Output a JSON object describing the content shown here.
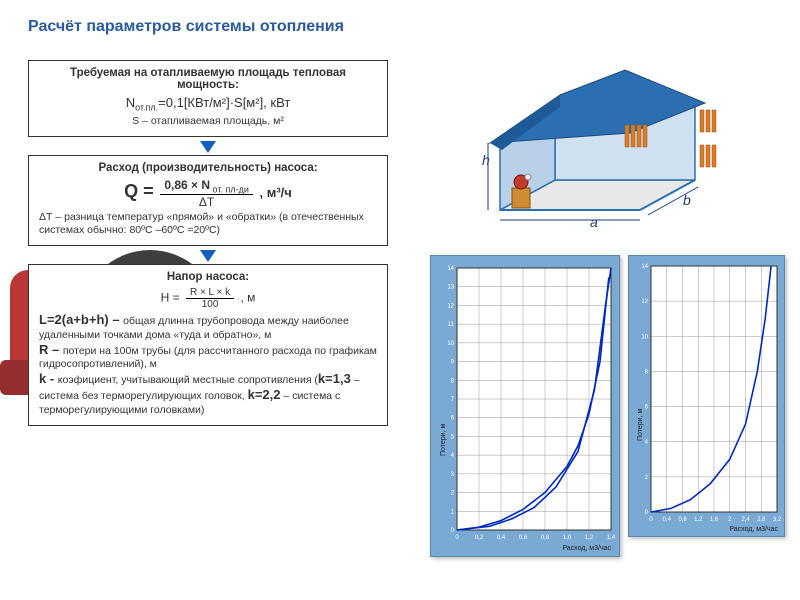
{
  "title": "Расчёт параметров системы отопления",
  "box1": {
    "heading": "Требуемая на отапливаемую площадь тепловая мощность:",
    "formula_pre": "N",
    "formula_sub": "от.пл.",
    "formula_rest": "=0,1[КВт/м²]·S[м²],  кВт",
    "note": "S – отапливаемая площадь, м²"
  },
  "box2": {
    "heading": "Расход (производительность) насоса:",
    "q": "Q =",
    "num": "0,86 × N",
    "num_sub": " от. пл-ди",
    "den": "ΔТ",
    "unit": ",  м³/ч",
    "note": "ΔТ – разница температур «прямой» и «обратки» (в отечественных системах обычно: 80ºС –60ºС =20ºС)"
  },
  "box3": {
    "heading": "Напор насоса:",
    "h": "H =",
    "num": "R × L × k",
    "den": "100",
    "unit": ", м",
    "l_line": "L=2(a+b+h) – ",
    "l_rest": "общая длинна трубопровода между наиболее удаленными точками дома «туда и обратно»,  м",
    "r_line": "R – ",
    "r_rest": "потери на 100м трубы (для рассчитанного расхода по графикам гидросопротивлений), м",
    "k_line": "k - ",
    "k_rest": "коэфициент, учитывающий местные сопротивления (",
    "k13": "k=1,3",
    "k13_rest": " –система без терморегулирующих головок, ",
    "k22": "k=2,2",
    "k22_rest": " – система с терморегулирующими головками)"
  },
  "house": {
    "labels": {
      "a": "a",
      "b": "b",
      "h": "h"
    },
    "colors": {
      "roof": "#2c6fb0",
      "wall_back": "#cfe0f0",
      "wall_side": "#b8d0e8",
      "floor": "#e8e8e8",
      "radiator": "#d67d2a",
      "pump": "#c43a2a",
      "base": "#d08a30"
    }
  },
  "chartA": {
    "ylabel": "Потери, м",
    "xlabel": "Расход, м3/час",
    "xlim": [
      0,
      1.4
    ],
    "ylim": [
      0,
      14
    ],
    "xticks": [
      "0",
      "0,2",
      "0,4",
      "0,6",
      "0,8",
      "1,0",
      "1,2",
      "1,4"
    ],
    "yticks": [
      "0",
      "1",
      "2",
      "3",
      "4",
      "5",
      "6",
      "7",
      "8",
      "9",
      "10",
      "11",
      "12",
      "13",
      "14"
    ],
    "curve1": [
      [
        0,
        0
      ],
      [
        0.2,
        0.15
      ],
      [
        0.4,
        0.5
      ],
      [
        0.6,
        1.1
      ],
      [
        0.8,
        2.0
      ],
      [
        1.0,
        3.4
      ],
      [
        1.1,
        4.5
      ],
      [
        1.2,
        6.2
      ],
      [
        1.3,
        9.0
      ],
      [
        1.38,
        13.5
      ]
    ],
    "curve2": [
      [
        0,
        0
      ],
      [
        0.3,
        0.2
      ],
      [
        0.5,
        0.6
      ],
      [
        0.7,
        1.2
      ],
      [
        0.9,
        2.3
      ],
      [
        1.1,
        4.2
      ],
      [
        1.25,
        7.5
      ],
      [
        1.35,
        12.0
      ],
      [
        1.4,
        14
      ]
    ],
    "bg": "#7aa9d4",
    "plot_bg": "#ffffff",
    "grid": "#808080",
    "curve_color": "#0029c4"
  },
  "chartB": {
    "ylabel": "Потери, м",
    "xlabel": "Расход, м3/час",
    "xlim": [
      0,
      3.2
    ],
    "ylim": [
      0,
      14
    ],
    "xticks": [
      "0",
      "0,4",
      "0,8",
      "1,2",
      "1,6",
      "2",
      "2,4",
      "2,8",
      "3,2"
    ],
    "yticks": [
      "0",
      "2",
      "4",
      "6",
      "8",
      "10",
      "12",
      "14"
    ],
    "curve1": [
      [
        0,
        0
      ],
      [
        0.5,
        0.2
      ],
      [
        1.0,
        0.7
      ],
      [
        1.5,
        1.6
      ],
      [
        2.0,
        3.0
      ],
      [
        2.4,
        5.0
      ],
      [
        2.7,
        8.0
      ],
      [
        2.9,
        11.0
      ],
      [
        3.05,
        14
      ]
    ],
    "bg": "#7aa9d4",
    "plot_bg": "#ffffff",
    "grid": "#808080",
    "curve_color": "#0029c4"
  }
}
